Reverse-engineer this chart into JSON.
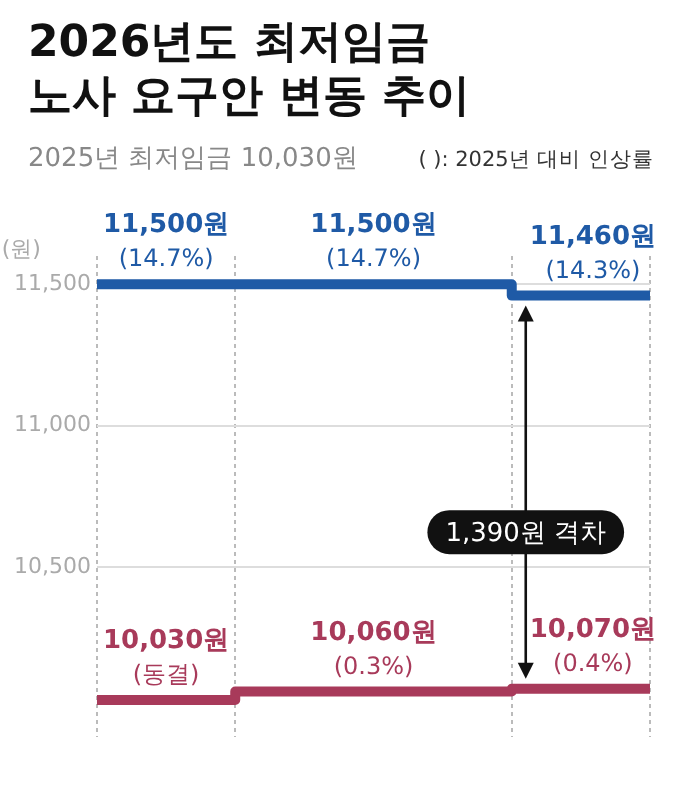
{
  "chart_data": {
    "type": "step",
    "title": "2026년도 최저임금 노사 요구안 변동 추이",
    "subtitle": "2025년 최저임금 10,030원",
    "ylabel": "(원)",
    "annotations": [
      "( ): 2025년 대비 인상률",
      "1,390원 격차"
    ],
    "categories": [
      null,
      null,
      null
    ],
    "series": [
      {
        "color": "#1f5aa6",
        "values": [
          11500,
          11500,
          11460
        ],
        "value_labels": [
          "11,500원 (14.7%)",
          "11,500원 (14.7%)",
          "11,460원 (14.3%)"
        ]
      },
      {
        "color": "#a83a5a",
        "values": [
          10030,
          10060,
          10070
        ],
        "value_labels": [
          "10,030원 (동결)",
          "10,060원 (0.3%)",
          "10,070원 (0.4%)"
        ]
      }
    ],
    "ylim": [
      9900,
      11600
    ],
    "yticks": [
      {
        "value": 10500,
        "label": "10,500"
      },
      {
        "value": 11000,
        "label": "11,000"
      },
      {
        "value": 11500,
        "label": "11,500"
      }
    ],
    "grid": true,
    "tick_labels": "y",
    "legend": false
  }
}
